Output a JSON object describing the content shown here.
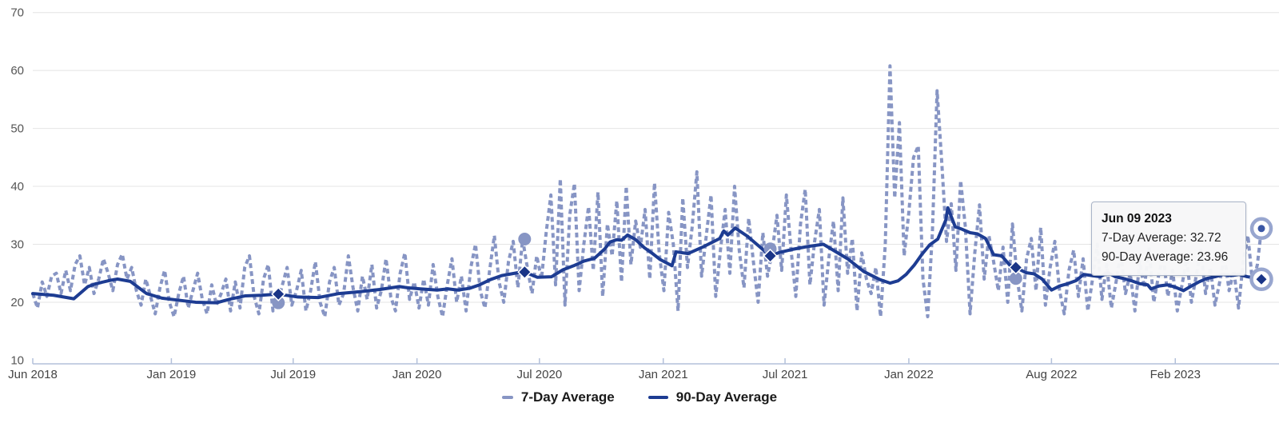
{
  "tooltip": {
    "title": "Jun 09 2023",
    "rows": [
      {
        "text": "7-Day Average: 32.72"
      },
      {
        "text": "90-Day Average: 23.96"
      }
    ]
  },
  "legend": {
    "items": [
      {
        "label": "7-Day Average",
        "color": "#8795c4",
        "style": "dashed"
      },
      {
        "label": "90-Day Average",
        "color": "#1d3c92",
        "style": "solid"
      }
    ]
  },
  "chart_data": {
    "type": "line",
    "title": "",
    "xlabel": "",
    "ylabel": "",
    "grid": true,
    "legend_position": "bottom-center",
    "colors": {
      "seven_day": "#8795c4",
      "ninety_day": "#1d3c92",
      "diamond_marker": "#1a3587",
      "active_dot": "#3b57a5",
      "halo_ring": "#98a6cf",
      "gridline": "#e4e4e4",
      "axis_line": "#b3c0da",
      "y_label": "#555555",
      "x_label": "#444444"
    },
    "y_axis": {
      "min": 10,
      "max": 70,
      "tick_labels": [
        70,
        60,
        50,
        40,
        30,
        20,
        10
      ],
      "grid_values": [
        20,
        30,
        40,
        50,
        60,
        70
      ]
    },
    "x_axis": {
      "start_date": "Jun 09 2018",
      "end_date": "Jun 09 2023",
      "span_days": 1826,
      "ticks": [
        {
          "label": "Jun 2018",
          "day": 0
        },
        {
          "label": "Jan 2019",
          "day": 206
        },
        {
          "label": "Jul 2019",
          "day": 387
        },
        {
          "label": "Jan 2020",
          "day": 571
        },
        {
          "label": "Jul 2020",
          "day": 753
        },
        {
          "label": "Jan 2021",
          "day": 937
        },
        {
          "label": "Jul 2021",
          "day": 1118
        },
        {
          "label": "Jan 2022",
          "day": 1302
        },
        {
          "label": "Aug 2022",
          "day": 1514
        },
        {
          "label": "Feb 2023",
          "day": 1698
        }
      ]
    },
    "series": [
      {
        "name": "7-Day Average",
        "style": "dashed",
        "sampling": "weekly",
        "step_days": 7,
        "values": [
          21.5,
          19.0,
          23.5,
          21.0,
          24.5,
          25.0,
          21.5,
          25.5,
          22.0,
          26.5,
          28.0,
          23.0,
          26.0,
          21.5,
          24.0,
          27.5,
          25.0,
          22.0,
          26.5,
          28.3,
          24.0,
          26.0,
          22.0,
          19.5,
          24.0,
          21.0,
          18.0,
          22.5,
          25.5,
          20.0,
          17.5,
          21.5,
          24.5,
          19.0,
          22.0,
          25.0,
          20.5,
          18.0,
          23.0,
          19.5,
          21.5,
          24.0,
          18.5,
          23.5,
          19.0,
          26.0,
          28.0,
          21.0,
          18.0,
          24.0,
          26.5,
          18.5,
          20.0,
          23.0,
          26.0,
          19.5,
          22.0,
          25.5,
          18.5,
          22.0,
          27.0,
          20.0,
          17.5,
          23.5,
          26.0,
          19.5,
          21.5,
          28.0,
          22.5,
          18.5,
          24.5,
          20.5,
          26.5,
          19.0,
          22.0,
          27.5,
          21.0,
          18.5,
          25.0,
          28.5,
          20.5,
          23.5,
          19.0,
          24.0,
          19.5,
          26.5,
          21.0,
          17.5,
          23.0,
          27.5,
          20.0,
          24.5,
          18.5,
          26.0,
          30.0,
          22.0,
          19.0,
          25.5,
          31.5,
          23.5,
          20.0,
          27.0,
          30.5,
          22.5,
          30.9,
          26.0,
          21.5,
          28.0,
          24.0,
          32.0,
          38.5,
          23.0,
          41.3,
          19.5,
          35.0,
          40.5,
          22.0,
          30.0,
          36.5,
          25.5,
          39.0,
          21.0,
          33.5,
          28.0,
          37.5,
          23.5,
          40.0,
          26.5,
          34.0,
          29.5,
          36.0,
          24.0,
          40.6,
          28.5,
          22.0,
          35.5,
          30.0,
          18.5,
          38.0,
          26.0,
          33.0,
          42.5,
          24.5,
          31.5,
          38.5,
          21.0,
          29.0,
          36.0,
          25.0,
          40.0,
          28.9,
          22.5,
          34.5,
          27.0,
          20.0,
          32.0,
          24.5,
          28.9,
          35.0,
          25.5,
          38.5,
          29.0,
          21.0,
          33.5,
          39.5,
          23.0,
          30.5,
          36.0,
          19.5,
          27.5,
          34.0,
          22.0,
          38.0,
          25.0,
          31.0,
          18.5,
          28.5,
          24.0,
          21.5,
          26.0,
          17.5,
          30.0,
          60.8,
          38.0,
          51.0,
          28.0,
          35.5,
          45.0,
          47.0,
          24.0,
          17.5,
          32.0,
          56.5,
          44.0,
          30.5,
          37.0,
          25.5,
          41.0,
          33.0,
          18.0,
          28.5,
          36.8,
          24.0,
          31.5,
          27.0,
          22.0,
          29.5,
          20.0,
          33.5,
          24.1,
          18.5,
          27.5,
          31.0,
          22.0,
          32.9,
          19.5,
          26.0,
          30.5,
          22.0,
          18.0,
          25.5,
          29.0,
          21.0,
          27.5,
          18.5,
          24.0,
          30.0,
          20.5,
          26.5,
          19.0,
          23.5,
          28.5,
          21.5,
          25.0,
          18.5,
          27.0,
          22.5,
          29.5,
          20.0,
          24.5,
          28.0,
          21.0,
          25.5,
          18.5,
          23.0,
          27.5,
          20.0,
          24.5,
          29.0,
          21.5,
          26.0,
          19.5,
          23.5,
          28.0,
          22.0,
          25.5,
          19.0,
          27.0,
          31.5,
          23.0,
          26.5,
          32.72
        ]
      },
      {
        "name": "90-Day Average",
        "style": "solid",
        "points": [
          [
            0,
            21.5
          ],
          [
            31,
            21.2
          ],
          [
            61,
            20.6
          ],
          [
            82,
            22.7
          ],
          [
            94,
            23.2
          ],
          [
            112,
            23.7
          ],
          [
            126,
            24.0
          ],
          [
            145,
            23.6
          ],
          [
            169,
            21.5
          ],
          [
            192,
            20.7
          ],
          [
            213,
            20.4
          ],
          [
            242,
            20.0
          ],
          [
            273,
            19.9
          ],
          [
            292,
            20.5
          ],
          [
            316,
            21.1
          ],
          [
            340,
            21.2
          ],
          [
            365,
            21.4
          ],
          [
            394,
            20.9
          ],
          [
            424,
            20.8
          ],
          [
            455,
            21.5
          ],
          [
            485,
            21.8
          ],
          [
            516,
            22.2
          ],
          [
            545,
            22.7
          ],
          [
            557,
            22.5
          ],
          [
            576,
            22.3
          ],
          [
            601,
            22.1
          ],
          [
            617,
            22.3
          ],
          [
            632,
            22.1
          ],
          [
            649,
            22.4
          ],
          [
            664,
            23.0
          ],
          [
            680,
            23.9
          ],
          [
            697,
            24.6
          ],
          [
            721,
            25.1
          ],
          [
            731,
            25.2
          ],
          [
            750,
            24.3
          ],
          [
            771,
            24.4
          ],
          [
            788,
            25.6
          ],
          [
            804,
            26.3
          ],
          [
            819,
            27.1
          ],
          [
            835,
            27.6
          ],
          [
            850,
            29.2
          ],
          [
            858,
            30.4
          ],
          [
            868,
            30.8
          ],
          [
            875,
            30.7
          ],
          [
            884,
            31.6
          ],
          [
            896,
            30.8
          ],
          [
            909,
            29.4
          ],
          [
            920,
            28.5
          ],
          [
            932,
            27.4
          ],
          [
            950,
            26.3
          ],
          [
            956,
            28.7
          ],
          [
            974,
            28.4
          ],
          [
            997,
            29.6
          ],
          [
            1021,
            31.0
          ],
          [
            1027,
            32.3
          ],
          [
            1033,
            31.6
          ],
          [
            1044,
            32.8
          ],
          [
            1062,
            31.4
          ],
          [
            1080,
            29.6
          ],
          [
            1096,
            28.0
          ],
          [
            1110,
            28.6
          ],
          [
            1128,
            29.1
          ],
          [
            1151,
            29.6
          ],
          [
            1175,
            30.0
          ],
          [
            1211,
            27.5
          ],
          [
            1235,
            25.3
          ],
          [
            1259,
            23.9
          ],
          [
            1274,
            23.3
          ],
          [
            1286,
            23.7
          ],
          [
            1298,
            24.8
          ],
          [
            1310,
            26.4
          ],
          [
            1321,
            28.2
          ],
          [
            1333,
            29.9
          ],
          [
            1345,
            30.9
          ],
          [
            1357,
            34.2
          ],
          [
            1360,
            36.3
          ],
          [
            1371,
            33.0
          ],
          [
            1381,
            32.6
          ],
          [
            1393,
            32.0
          ],
          [
            1404,
            31.8
          ],
          [
            1416,
            31.0
          ],
          [
            1428,
            28.2
          ],
          [
            1440,
            28.0
          ],
          [
            1452,
            26.4
          ],
          [
            1461,
            26.0
          ],
          [
            1476,
            25.1
          ],
          [
            1488,
            24.9
          ],
          [
            1500,
            24.0
          ],
          [
            1514,
            22.1
          ],
          [
            1526,
            22.8
          ],
          [
            1538,
            23.2
          ],
          [
            1550,
            23.7
          ],
          [
            1562,
            24.8
          ],
          [
            1574,
            24.6
          ],
          [
            1586,
            24.4
          ],
          [
            1598,
            25.1
          ],
          [
            1609,
            24.4
          ],
          [
            1621,
            24.1
          ],
          [
            1633,
            23.7
          ],
          [
            1645,
            23.2
          ],
          [
            1657,
            23.0
          ],
          [
            1662,
            22.3
          ],
          [
            1674,
            22.8
          ],
          [
            1686,
            23.0
          ],
          [
            1698,
            22.6
          ],
          [
            1710,
            22.0
          ],
          [
            1722,
            22.8
          ],
          [
            1733,
            23.5
          ],
          [
            1745,
            24.1
          ],
          [
            1757,
            24.4
          ],
          [
            1769,
            24.8
          ],
          [
            1781,
            24.6
          ],
          [
            1793,
            24.8
          ],
          [
            1805,
            24.4
          ],
          [
            1817,
            24.2
          ],
          [
            1826,
            23.96
          ]
        ]
      }
    ],
    "markers": {
      "dates": [
        "Jun 09 2019",
        "Jun 09 2020",
        "Jun 09 2021",
        "Jun 09 2022",
        "Jun 09 2023"
      ],
      "days": [
        365,
        731,
        1096,
        1461,
        1826
      ],
      "seven_day_values": [
        19.9,
        30.9,
        29.2,
        24.1,
        32.72
      ],
      "ninety_day_values": [
        21.4,
        25.2,
        28.0,
        26.0,
        23.96
      ],
      "active_index": 4
    }
  }
}
